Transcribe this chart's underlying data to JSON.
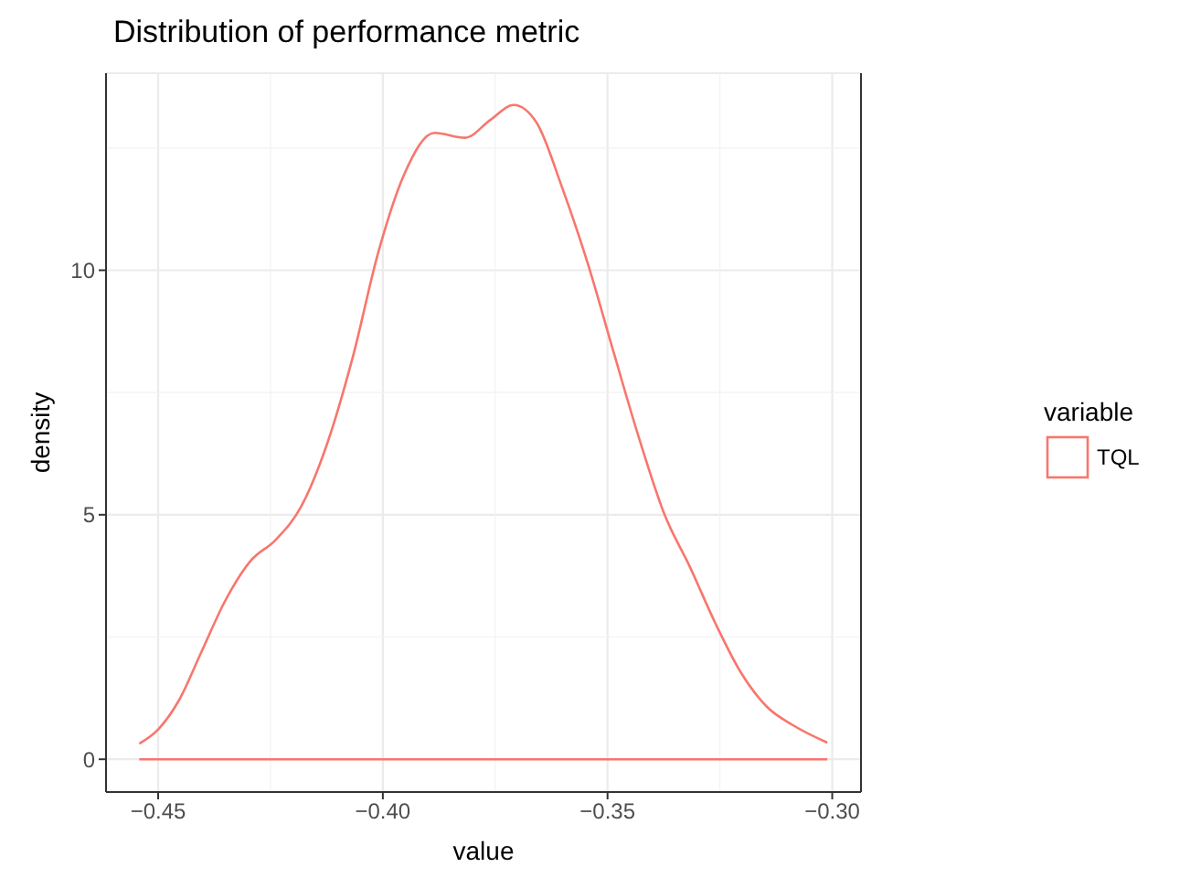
{
  "chart_data": {
    "type": "line",
    "title": "Distribution of performance metric",
    "xlabel": "value",
    "ylabel": "density",
    "legend_title": "variable",
    "legend": "right",
    "grid": true,
    "xlim": [
      -0.4616,
      -0.2936
    ],
    "xticks": [
      {
        "value": -0.45,
        "label": "−0.45"
      },
      {
        "value": -0.4,
        "label": "−0.40"
      },
      {
        "value": -0.35,
        "label": "−0.35"
      },
      {
        "value": -0.3,
        "label": "−0.30"
      }
    ],
    "ylim": [
      -0.67,
      14.03
    ],
    "yticks": [
      0,
      5,
      10
    ],
    "ref_lines": [
      {
        "axis": "y",
        "value": 0,
        "color": "#f8766d"
      }
    ],
    "series": [
      {
        "name": "TQL",
        "color": "#f8766d",
        "x": [
          -0.4542,
          -0.45,
          -0.4454,
          -0.4403,
          -0.4352,
          -0.4295,
          -0.4238,
          -0.4181,
          -0.4124,
          -0.4067,
          -0.401,
          -0.3953,
          -0.3885,
          -0.3817,
          -0.376,
          -0.3709,
          -0.3658,
          -0.3601,
          -0.3543,
          -0.3487,
          -0.343,
          -0.3373,
          -0.3316,
          -0.326,
          -0.3203,
          -0.3145,
          -0.3088,
          -0.3011
        ],
        "values": [
          0.32,
          0.61,
          1.2,
          2.21,
          3.22,
          4.05,
          4.49,
          5.18,
          6.45,
          8.22,
          10.37,
          11.95,
          12.81,
          12.71,
          13.08,
          13.38,
          13.02,
          11.69,
          10.11,
          8.34,
          6.57,
          5.0,
          3.92,
          2.78,
          1.77,
          1.07,
          0.7,
          0.34
        ]
      }
    ]
  }
}
